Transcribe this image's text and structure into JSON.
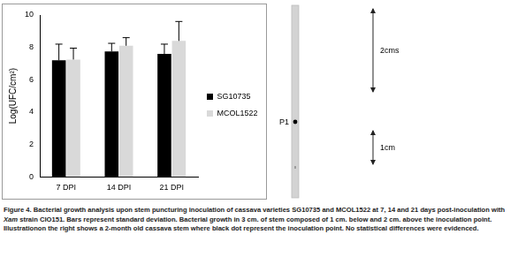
{
  "chart_data": {
    "type": "bar",
    "categories": [
      "7 DPI",
      "14 DPI",
      "21 DPI"
    ],
    "series": [
      {
        "name": "SG10735",
        "color": "#000000",
        "values": [
          7.2,
          7.75,
          7.6
        ],
        "errors": [
          1.0,
          0.5,
          0.6
        ]
      },
      {
        "name": "MCOL1522",
        "color": "#d9d9d9",
        "values": [
          7.25,
          8.1,
          8.4
        ],
        "errors": [
          0.7,
          0.5,
          1.2
        ]
      }
    ],
    "y_label": "Log(UFC/cm²)",
    "ylim": [
      0,
      10
    ],
    "yticks": [
      0,
      2,
      4,
      6,
      8,
      10
    ],
    "grid": false,
    "legend": "right"
  },
  "illustration": {
    "inoculation_point": "P1",
    "upper_segment": "2cms",
    "lower_segment": "1cm"
  },
  "caption": [
    {
      "text": "Figure 4.",
      "italic": false
    },
    {
      "text": " Bacterial growth analysis upon stem puncturing inoculation of cassava varieties SG10735 and MCOL1522 at 7, 14 and 21 days post-inoculation with ",
      "italic": false
    },
    {
      "text": "Xam",
      "italic": true
    },
    {
      "text": " strain CIO151. Bars represent standard deviation. Bacterial growth in 3 cm. of stem composed of 1 cm. below and 2 cm. above the inoculation point. Illustrationon the right shows a 2-month old cassava stem where black dot represent the inoculation point. No statistical differences were evidenced.",
      "italic": false
    }
  ]
}
